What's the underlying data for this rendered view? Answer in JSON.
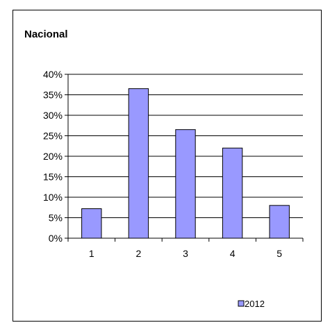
{
  "chart_data": {
    "type": "bar",
    "title": "Nacional",
    "xlabel": "",
    "ylabel": "",
    "categories": [
      "1",
      "2",
      "3",
      "4",
      "5"
    ],
    "series": [
      {
        "name": "2012",
        "values": [
          7.2,
          36.5,
          26.5,
          22.0,
          8.0
        ]
      }
    ],
    "ylim": [
      0,
      40
    ],
    "yticks": [
      "0%",
      "5%",
      "10%",
      "15%",
      "20%",
      "25%",
      "30%",
      "35%",
      "40%"
    ],
    "grid": true,
    "legend_position": "bottom-right",
    "colors": {
      "bar_fill": "#9999ff",
      "bar_stroke": "#000000",
      "grid": "#000000",
      "axis": "#000000"
    }
  }
}
